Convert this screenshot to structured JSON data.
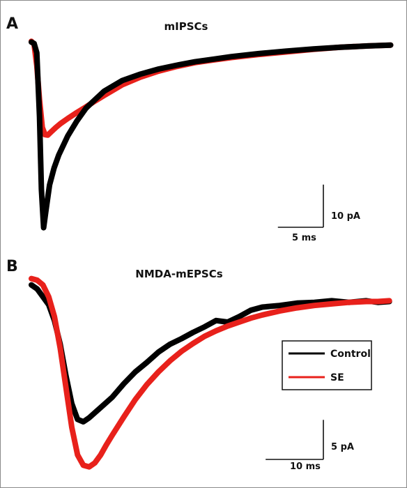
{
  "colors": {
    "control": "#000000",
    "se": "#e8211b"
  },
  "chart_data": [
    {
      "type": "line",
      "panel_label": "A",
      "title": "mIPSCs",
      "xlabel": "",
      "ylabel": "",
      "x_unit": "ms",
      "y_unit": "pA",
      "xlim": [
        0,
        40
      ],
      "ylim": [
        -47,
        3
      ],
      "scale_bar": {
        "x_value": 5,
        "x_label": "5 ms",
        "y_value": 10,
        "y_label": "10 pA"
      },
      "series": [
        {
          "name": "Control",
          "color": "#000000",
          "x": [
            0,
            0.3,
            0.6,
            0.9,
            1.1,
            1.35,
            1.6,
            2.0,
            2.5,
            3.0,
            4.0,
            5.0,
            6.0,
            7.0,
            8.0,
            10.0,
            12.0,
            14.0,
            16.0,
            18.0,
            20.0,
            22.0,
            25.0,
            28.0,
            31.0,
            34.0,
            37.0,
            39.5
          ],
          "y": [
            -0.5,
            -0.8,
            -3,
            -18,
            -35,
            -44,
            -40,
            -34,
            -30,
            -27,
            -22.5,
            -19,
            -16,
            -14,
            -12,
            -9.5,
            -8,
            -6.8,
            -5.9,
            -5.1,
            -4.5,
            -3.9,
            -3.2,
            -2.6,
            -2.1,
            -1.7,
            -1.4,
            -1.2
          ]
        },
        {
          "name": "SE",
          "color": "#e8211b",
          "x": [
            0,
            0.3,
            0.6,
            0.9,
            1.2,
            1.5,
            1.8,
            2.2,
            2.7,
            3.2,
            4.0,
            5.0,
            6.0,
            7.0,
            8.0,
            10.0,
            12.0,
            14.0,
            16.0,
            18.0,
            20.0,
            22.0,
            25.0,
            28.0,
            31.0,
            34.0,
            37.0,
            39.5
          ],
          "y": [
            -0.3,
            -1,
            -6,
            -14,
            -20.5,
            -22.2,
            -22.3,
            -21.5,
            -20.5,
            -19.6,
            -18.4,
            -17,
            -15.7,
            -14.3,
            -13,
            -10.5,
            -8.7,
            -7.3,
            -6.2,
            -5.3,
            -4.7,
            -4.1,
            -3.4,
            -2.8,
            -2.2,
            -1.7,
            -1.4,
            -1.2
          ]
        }
      ]
    },
    {
      "type": "line",
      "panel_label": "B",
      "title": "NMDA-mEPSCs",
      "xlabel": "",
      "ylabel": "",
      "x_unit": "ms",
      "y_unit": "pA",
      "xlim": [
        0,
        63
      ],
      "ylim": [
        -25,
        1
      ],
      "scale_bar": {
        "x_value": 10,
        "x_label": "10 ms",
        "y_value": 5,
        "y_label": "5 pA"
      },
      "legend": {
        "position": "right",
        "entries": [
          "Control",
          "SE"
        ]
      },
      "series": [
        {
          "name": "Control",
          "color": "#000000",
          "x": [
            0,
            1,
            2,
            3,
            4,
            5,
            6,
            7,
            8,
            9,
            10,
            12,
            14,
            16,
            18,
            20,
            22,
            24,
            26,
            28,
            30,
            32,
            34,
            36,
            38,
            40,
            43,
            46,
            49,
            52,
            55,
            58,
            60,
            62
          ],
          "y": [
            -1,
            -1.5,
            -2.5,
            -3.5,
            -5.5,
            -8.5,
            -12.5,
            -16,
            -18,
            -18.3,
            -17.8,
            -16.5,
            -15.2,
            -13.5,
            -12,
            -10.8,
            -9.5,
            -8.5,
            -7.8,
            -7,
            -6.3,
            -5.5,
            -5.7,
            -5,
            -4.2,
            -3.8,
            -3.6,
            -3.3,
            -3.2,
            -3.0,
            -3.2,
            -3.0,
            -3.2,
            -3.1
          ]
        },
        {
          "name": "SE",
          "color": "#e8211b",
          "x": [
            0,
            1,
            2,
            3,
            4,
            5,
            6,
            7,
            8,
            9,
            10,
            11,
            12,
            13,
            14,
            16,
            18,
            20,
            22,
            24,
            26,
            28,
            30,
            32,
            34,
            36,
            38,
            40,
            43,
            46,
            49,
            52,
            55,
            58,
            60,
            62
          ],
          "y": [
            -0.2,
            -0.4,
            -1,
            -2.5,
            -5,
            -9,
            -14,
            -19,
            -22.5,
            -23.8,
            -24,
            -23.5,
            -22.5,
            -21.2,
            -20,
            -17.7,
            -15.5,
            -13.6,
            -12,
            -10.6,
            -9.4,
            -8.4,
            -7.5,
            -6.8,
            -6.2,
            -5.7,
            -5.2,
            -4.8,
            -4.3,
            -3.9,
            -3.6,
            -3.4,
            -3.2,
            -3.1,
            -3.1,
            -3.0
          ]
        }
      ]
    }
  ]
}
